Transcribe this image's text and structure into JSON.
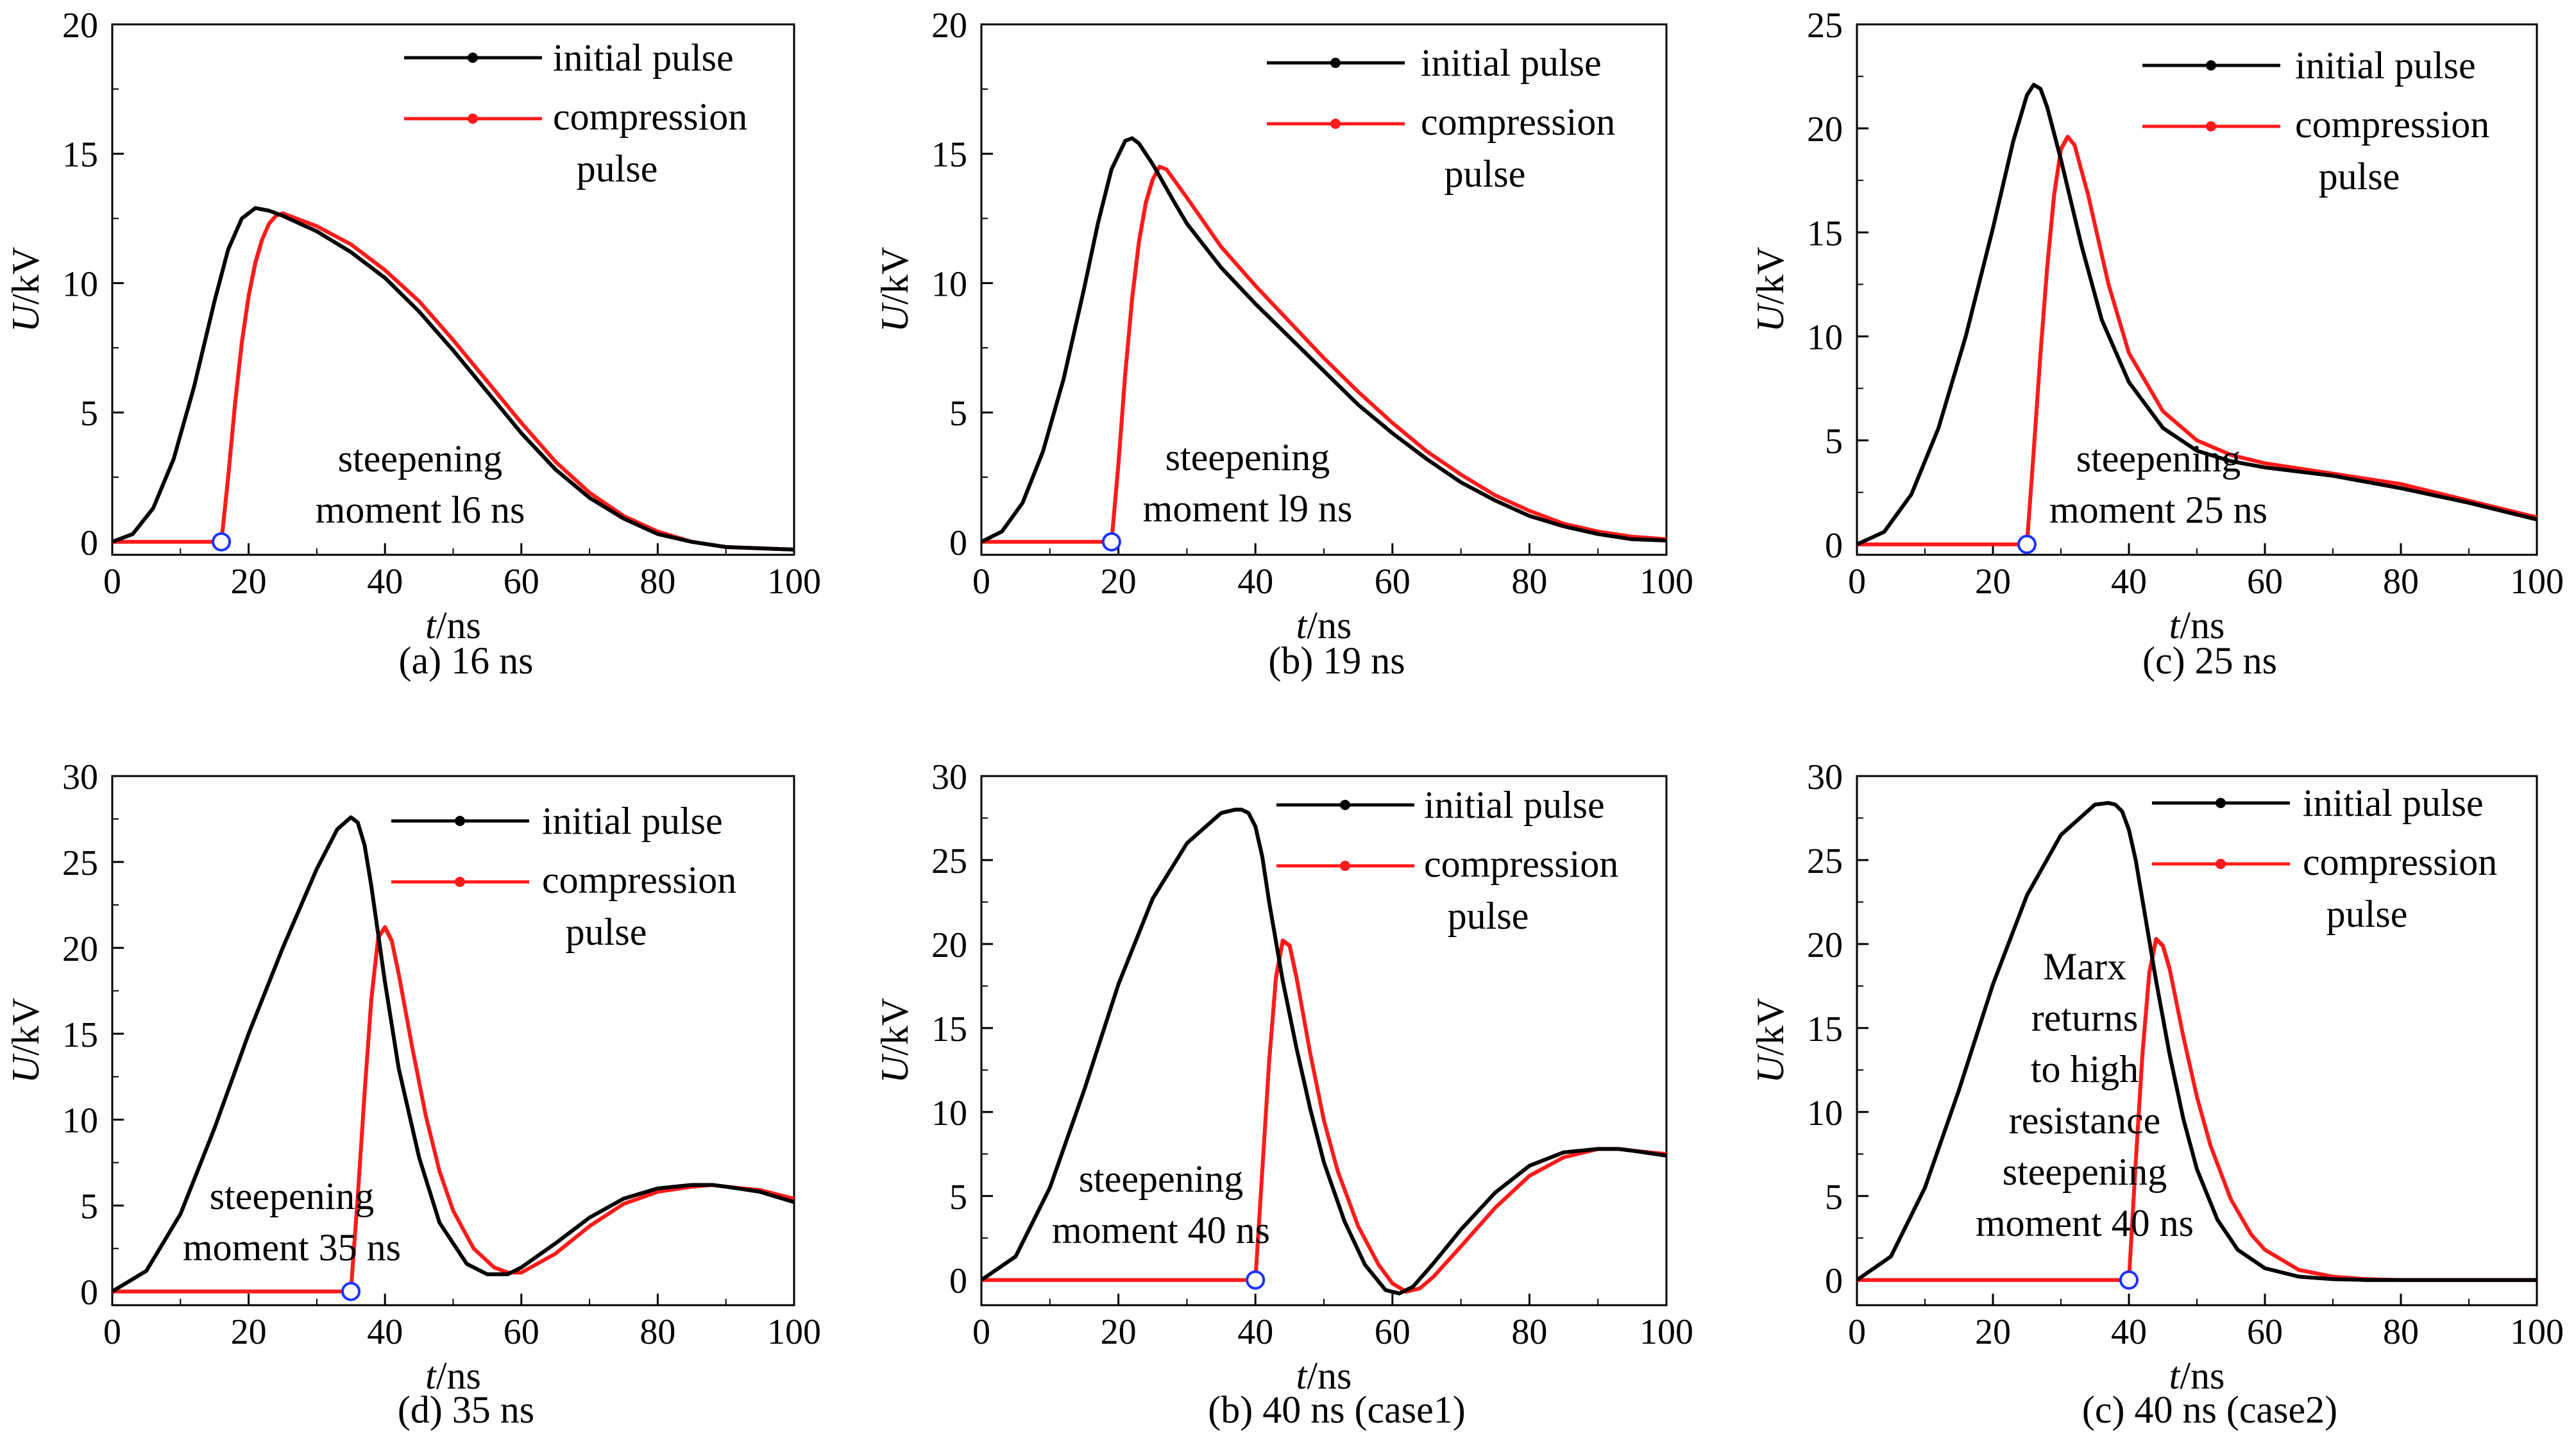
{
  "colors": {
    "initial": "#000000",
    "compression": "#ff1a1a",
    "marker": "#1a33ff"
  },
  "chart_data": [
    {
      "type": "line",
      "caption": "(a) 16 ns",
      "xlabel_italic": "t",
      "xlabel_unit": "/ns",
      "ylabel_italic": "U",
      "ylabel_unit": "/kV",
      "xlim": [
        0,
        100
      ],
      "ylim": [
        -0.5,
        20
      ],
      "xticks": [
        0,
        20,
        40,
        60,
        80,
        100
      ],
      "yticks": [
        0,
        5,
        10,
        15,
        20
      ],
      "legend": [
        "initial pulse",
        "compression",
        "pulse"
      ],
      "annotation": [
        "steepening",
        "moment l6 ns"
      ],
      "steepening_moment": 16,
      "series": [
        {
          "name": "initial pulse",
          "x": [
            0,
            3,
            6,
            9,
            12,
            15,
            17,
            19,
            21,
            23,
            25,
            30,
            35,
            40,
            45,
            50,
            55,
            60,
            65,
            70,
            75,
            80,
            85,
            90,
            95,
            100
          ],
          "y": [
            0,
            0.3,
            1.3,
            3.2,
            6.0,
            9.3,
            11.3,
            12.5,
            12.9,
            12.8,
            12.6,
            12.0,
            11.2,
            10.2,
            8.9,
            7.4,
            5.8,
            4.2,
            2.8,
            1.7,
            0.9,
            0.3,
            0.0,
            -0.2,
            -0.25,
            -0.3
          ]
        },
        {
          "name": "compression pulse",
          "x": [
            0,
            16,
            17,
            18,
            19,
            20,
            21,
            22,
            23,
            24,
            25,
            30,
            35,
            40,
            45,
            50,
            55,
            60,
            65,
            70,
            75,
            80,
            85,
            90,
            95,
            100
          ],
          "y": [
            0,
            0,
            2.5,
            5.3,
            7.7,
            9.5,
            10.8,
            11.7,
            12.3,
            12.6,
            12.7,
            12.2,
            11.5,
            10.5,
            9.3,
            7.8,
            6.2,
            4.6,
            3.1,
            1.9,
            1.0,
            0.4,
            0.0,
            -0.2,
            -0.25,
            -0.3
          ]
        }
      ]
    },
    {
      "type": "line",
      "caption": "(b) 19 ns",
      "xlabel_italic": "t",
      "xlabel_unit": "/ns",
      "ylabel_italic": "U",
      "ylabel_unit": "/kV",
      "xlim": [
        0,
        100
      ],
      "ylim": [
        -0.5,
        20
      ],
      "xticks": [
        0,
        20,
        40,
        60,
        80,
        100
      ],
      "yticks": [
        0,
        5,
        10,
        15,
        20
      ],
      "legend": [
        "initial pulse",
        "compression",
        "pulse"
      ],
      "annotation": [
        "steepening",
        "moment l9 ns"
      ],
      "steepening_moment": 19,
      "series": [
        {
          "name": "initial pulse",
          "x": [
            0,
            3,
            6,
            9,
            12,
            15,
            17,
            19,
            21,
            22,
            23,
            25,
            28,
            30,
            35,
            40,
            45,
            50,
            55,
            60,
            65,
            70,
            75,
            80,
            85,
            90,
            95,
            100
          ],
          "y": [
            0,
            0.4,
            1.5,
            3.5,
            6.3,
            9.8,
            12.3,
            14.4,
            15.5,
            15.6,
            15.4,
            14.6,
            13.2,
            12.3,
            10.6,
            9.2,
            7.9,
            6.6,
            5.3,
            4.2,
            3.2,
            2.3,
            1.6,
            1.0,
            0.6,
            0.3,
            0.1,
            0.05
          ]
        },
        {
          "name": "compression pulse",
          "x": [
            0,
            19,
            20,
            21,
            22,
            23,
            24,
            25,
            26,
            27,
            30,
            35,
            40,
            45,
            50,
            55,
            60,
            65,
            70,
            75,
            80,
            85,
            90,
            95,
            100
          ],
          "y": [
            0,
            0,
            3.0,
            6.5,
            9.4,
            11.6,
            13.1,
            14.0,
            14.5,
            14.4,
            13.3,
            11.4,
            9.9,
            8.5,
            7.1,
            5.8,
            4.6,
            3.5,
            2.6,
            1.8,
            1.2,
            0.7,
            0.4,
            0.2,
            0.1
          ]
        }
      ]
    },
    {
      "type": "line",
      "caption": "(c) 25 ns",
      "xlabel_italic": "t",
      "xlabel_unit": "/ns",
      "ylabel_italic": "U",
      "ylabel_unit": "/kV",
      "xlim": [
        0,
        100
      ],
      "ylim": [
        -0.5,
        25
      ],
      "xticks": [
        0,
        20,
        40,
        60,
        80,
        100
      ],
      "yticks": [
        0,
        5,
        10,
        15,
        20,
        25
      ],
      "legend": [
        "initial pulse",
        "compression",
        "pulse"
      ],
      "annotation": [
        "steepening",
        "moment 25 ns"
      ],
      "steepening_moment": 25,
      "series": [
        {
          "name": "initial pulse",
          "x": [
            0,
            4,
            8,
            12,
            16,
            20,
            23,
            25,
            26,
            27,
            28,
            30,
            33,
            36,
            40,
            45,
            50,
            55,
            60,
            70,
            80,
            90,
            100
          ],
          "y": [
            0,
            0.6,
            2.4,
            5.6,
            10.0,
            15.2,
            19.4,
            21.6,
            22.1,
            21.9,
            21.0,
            18.5,
            14.4,
            10.8,
            7.8,
            5.6,
            4.5,
            4.0,
            3.7,
            3.3,
            2.7,
            2.0,
            1.2
          ]
        },
        {
          "name": "compression pulse",
          "x": [
            0,
            25,
            26,
            27,
            28,
            29,
            30,
            31,
            32,
            34,
            37,
            40,
            45,
            50,
            55,
            60,
            70,
            80,
            90,
            100
          ],
          "y": [
            0,
            0,
            4.5,
            9.2,
            13.4,
            16.8,
            19.0,
            19.6,
            19.2,
            16.8,
            12.5,
            9.2,
            6.4,
            5.0,
            4.3,
            3.9,
            3.4,
            2.9,
            2.1,
            1.3
          ]
        }
      ]
    },
    {
      "type": "line",
      "caption": "(d) 35 ns",
      "xlabel_italic": "t",
      "xlabel_unit": "/ns",
      "ylabel_italic": "U",
      "ylabel_unit": "/kV",
      "xlim": [
        0,
        100
      ],
      "ylim": [
        -0.8,
        30
      ],
      "xticks": [
        0,
        20,
        40,
        60,
        80,
        100
      ],
      "yticks": [
        0,
        5,
        10,
        15,
        20,
        25,
        30
      ],
      "legend": [
        "initial pulse",
        "compression",
        "pulse"
      ],
      "annotation": [
        "steepening",
        "moment 35 ns"
      ],
      "steepening_moment": 35,
      "series": [
        {
          "name": "initial pulse",
          "x": [
            0,
            5,
            10,
            15,
            20,
            25,
            30,
            33,
            35,
            36,
            37,
            38,
            40,
            42,
            45,
            48,
            52,
            55,
            58,
            60,
            65,
            70,
            75,
            80,
            85,
            88,
            90,
            95,
            100
          ],
          "y": [
            0,
            1.2,
            4.5,
            9.5,
            15.0,
            20.0,
            24.6,
            26.9,
            27.6,
            27.3,
            26.0,
            23.6,
            18.0,
            13.0,
            7.8,
            4.0,
            1.6,
            1.0,
            1.0,
            1.4,
            2.8,
            4.3,
            5.4,
            6.0,
            6.2,
            6.2,
            6.1,
            5.8,
            5.2
          ]
        },
        {
          "name": "compression pulse",
          "x": [
            0,
            35,
            36,
            37,
            38,
            39,
            40,
            41,
            42,
            44,
            46,
            48,
            50,
            53,
            56,
            58,
            60,
            65,
            70,
            75,
            80,
            85,
            88,
            90,
            95,
            100
          ],
          "y": [
            0,
            0,
            5.5,
            11.5,
            17.0,
            20.6,
            21.2,
            20.4,
            18.5,
            14.2,
            10.2,
            7.0,
            4.7,
            2.5,
            1.4,
            1.1,
            1.1,
            2.2,
            3.8,
            5.1,
            5.8,
            6.1,
            6.2,
            6.1,
            5.9,
            5.4
          ]
        }
      ]
    },
    {
      "type": "line",
      "caption": "(b) 40 ns (case1)",
      "xlabel_italic": "t",
      "xlabel_unit": "/ns",
      "ylabel_italic": "U",
      "ylabel_unit": "/kV",
      "xlim": [
        0,
        100
      ],
      "ylim": [
        -1.5,
        30
      ],
      "xticks": [
        0,
        20,
        40,
        60,
        80,
        100
      ],
      "yticks": [
        0,
        5,
        10,
        15,
        20,
        25,
        30
      ],
      "legend": [
        "initial pulse",
        "compression",
        "pulse"
      ],
      "annotation": [
        "steepening",
        "moment 40 ns"
      ],
      "steepening_moment": 40,
      "series": [
        {
          "name": "initial pulse",
          "x": [
            0,
            5,
            10,
            15,
            20,
            25,
            30,
            35,
            37,
            38,
            39,
            40,
            41,
            42,
            44,
            46,
            48,
            50,
            53,
            56,
            59,
            61,
            63,
            66,
            70,
            75,
            80,
            85,
            90,
            93,
            95,
            100
          ],
          "y": [
            0,
            1.4,
            5.5,
            11.3,
            17.6,
            22.7,
            26.0,
            27.8,
            28.0,
            28.0,
            27.8,
            27.0,
            25.2,
            22.5,
            17.8,
            13.8,
            10.2,
            7.0,
            3.5,
            0.9,
            -0.6,
            -0.8,
            -0.4,
            1.0,
            3.0,
            5.2,
            6.8,
            7.6,
            7.8,
            7.8,
            7.7,
            7.4
          ]
        },
        {
          "name": "compression pulse",
          "x": [
            0,
            40,
            41,
            42,
            43,
            44,
            45,
            46,
            48,
            50,
            52,
            55,
            58,
            60,
            62,
            64,
            66,
            70,
            75,
            80,
            85,
            90,
            93,
            95,
            100
          ],
          "y": [
            0,
            0,
            6.5,
            13.0,
            18.0,
            20.2,
            19.9,
            18.0,
            13.5,
            9.5,
            6.5,
            3.2,
            0.9,
            -0.2,
            -0.7,
            -0.5,
            0.2,
            2.0,
            4.3,
            6.2,
            7.3,
            7.8,
            7.8,
            7.7,
            7.5
          ]
        }
      ]
    },
    {
      "type": "line",
      "caption": "(c) 40 ns (case2)",
      "xlabel_italic": "t",
      "xlabel_unit": "/ns",
      "ylabel_italic": "U",
      "ylabel_unit": "/kV",
      "xlim": [
        0,
        100
      ],
      "ylim": [
        -1.5,
        30
      ],
      "xticks": [
        0,
        20,
        40,
        60,
        80,
        100
      ],
      "yticks": [
        0,
        5,
        10,
        15,
        20,
        25,
        30
      ],
      "legend": [
        "initial pulse",
        "compression",
        "pulse"
      ],
      "annotation": [
        "Marx",
        "returns",
        "to high",
        "resistance",
        "steepening",
        "moment 40 ns"
      ],
      "steepening_moment": 40,
      "series": [
        {
          "name": "initial pulse",
          "x": [
            0,
            5,
            10,
            15,
            20,
            25,
            30,
            35,
            37,
            38,
            39,
            40,
            41,
            42,
            44,
            46,
            48,
            50,
            53,
            56,
            60,
            65,
            70,
            75,
            80,
            90,
            100
          ],
          "y": [
            0,
            1.4,
            5.5,
            11.3,
            17.6,
            22.9,
            26.5,
            28.3,
            28.4,
            28.3,
            27.9,
            26.8,
            25.0,
            22.6,
            17.8,
            13.4,
            9.6,
            6.6,
            3.6,
            1.8,
            0.7,
            0.2,
            0.05,
            0,
            0,
            0,
            0
          ]
        },
        {
          "name": "compression pulse",
          "x": [
            0,
            40,
            41,
            42,
            43,
            44,
            45,
            46,
            48,
            50,
            52,
            55,
            58,
            60,
            65,
            70,
            75,
            80,
            90,
            100
          ],
          "y": [
            0,
            0,
            7.0,
            13.5,
            18.3,
            20.3,
            19.9,
            18.5,
            14.5,
            10.9,
            8.0,
            4.8,
            2.7,
            1.8,
            0.6,
            0.2,
            0.05,
            0,
            0,
            0
          ]
        }
      ]
    }
  ]
}
